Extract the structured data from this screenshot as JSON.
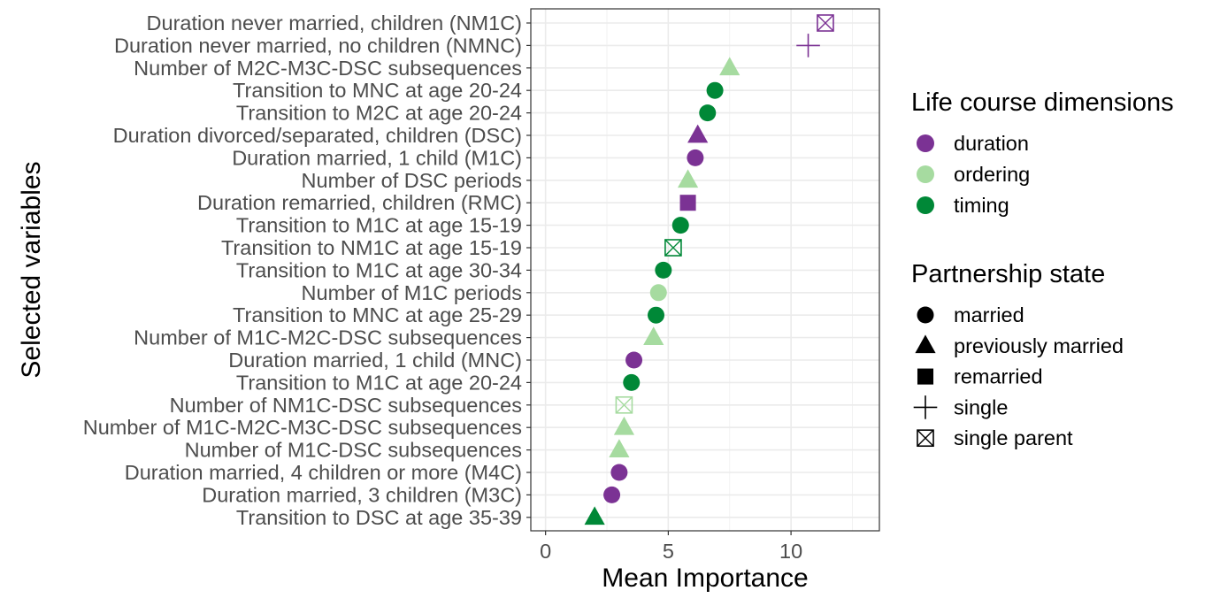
{
  "chart_data": {
    "type": "scatter",
    "xlabel": "Mean Importance",
    "ylabel": "Selected variables",
    "xlim": [
      -0.6,
      13.6
    ],
    "x_ticks": [
      0,
      5,
      10
    ],
    "grid": true,
    "colors": {
      "duration": "#7B3294",
      "ordering": "#A6DBA0",
      "timing": "#008837"
    },
    "legend_position": "right",
    "legend": [
      {
        "title": "Life course dimensions",
        "entries": [
          {
            "label": "duration",
            "key": "duration"
          },
          {
            "label": "ordering",
            "key": "ordering"
          },
          {
            "label": "timing",
            "key": "timing"
          }
        ]
      },
      {
        "title": "Partnership state",
        "entries": [
          {
            "label": "married",
            "shape": "circle"
          },
          {
            "label": "previously married",
            "shape": "triangle"
          },
          {
            "label": "remarried",
            "shape": "square"
          },
          {
            "label": "single",
            "shape": "plus"
          },
          {
            "label": "single parent",
            "shape": "boxcross"
          }
        ]
      }
    ],
    "points": [
      {
        "label": "Duration never married, children (NM1C)",
        "value": 11.4,
        "dimension": "duration",
        "state": "boxcross"
      },
      {
        "label": "Duration never married, no children (NMNC)",
        "value": 10.7,
        "dimension": "duration",
        "state": "plus"
      },
      {
        "label": "Number of M2C-M3C-DSC subsequences",
        "value": 7.5,
        "dimension": "ordering",
        "state": "triangle"
      },
      {
        "label": "Transition to MNC at age 20-24",
        "value": 6.9,
        "dimension": "timing",
        "state": "circle"
      },
      {
        "label": "Transition to M2C at age 20-24",
        "value": 6.6,
        "dimension": "timing",
        "state": "circle"
      },
      {
        "label": "Duration divorced/separated, children (DSC)",
        "value": 6.2,
        "dimension": "duration",
        "state": "triangle"
      },
      {
        "label": "Duration married, 1 child (M1C)",
        "value": 6.1,
        "dimension": "duration",
        "state": "circle"
      },
      {
        "label": "Number of DSC periods",
        "value": 5.8,
        "dimension": "ordering",
        "state": "triangle"
      },
      {
        "label": "Duration remarried, children (RMC)",
        "value": 5.8,
        "dimension": "duration",
        "state": "square"
      },
      {
        "label": "Transition to M1C at age 15-19",
        "value": 5.5,
        "dimension": "timing",
        "state": "circle"
      },
      {
        "label": "Transition to NM1C at age 15-19",
        "value": 5.2,
        "dimension": "timing",
        "state": "boxcross"
      },
      {
        "label": "Transition to M1C at age 30-34",
        "value": 4.8,
        "dimension": "timing",
        "state": "circle"
      },
      {
        "label": "Number of M1C periods",
        "value": 4.6,
        "dimension": "ordering",
        "state": "circle"
      },
      {
        "label": "Transition to MNC at age 25-29",
        "value": 4.5,
        "dimension": "timing",
        "state": "circle"
      },
      {
        "label": "Number of M1C-M2C-DSC subsequences",
        "value": 4.4,
        "dimension": "ordering",
        "state": "triangle"
      },
      {
        "label": "Duration married, 1 child (MNC)",
        "value": 3.6,
        "dimension": "duration",
        "state": "circle"
      },
      {
        "label": "Transition to M1C at age 20-24",
        "value": 3.5,
        "dimension": "timing",
        "state": "circle"
      },
      {
        "label": "Number of NM1C-DSC subsequences",
        "value": 3.2,
        "dimension": "ordering",
        "state": "boxcross"
      },
      {
        "label": "Number of M1C-M2C-M3C-DSC subsequences",
        "value": 3.2,
        "dimension": "ordering",
        "state": "triangle"
      },
      {
        "label": "Number of M1C-DSC subsequences",
        "value": 3.0,
        "dimension": "ordering",
        "state": "triangle"
      },
      {
        "label": "Duration married, 4 children or more (M4C)",
        "value": 3.0,
        "dimension": "duration",
        "state": "circle"
      },
      {
        "label": "Duration married, 3 children (M3C)",
        "value": 2.7,
        "dimension": "duration",
        "state": "circle"
      },
      {
        "label": "Transition to DSC at age 35-39",
        "value": 2.0,
        "dimension": "timing",
        "state": "triangle"
      }
    ]
  }
}
